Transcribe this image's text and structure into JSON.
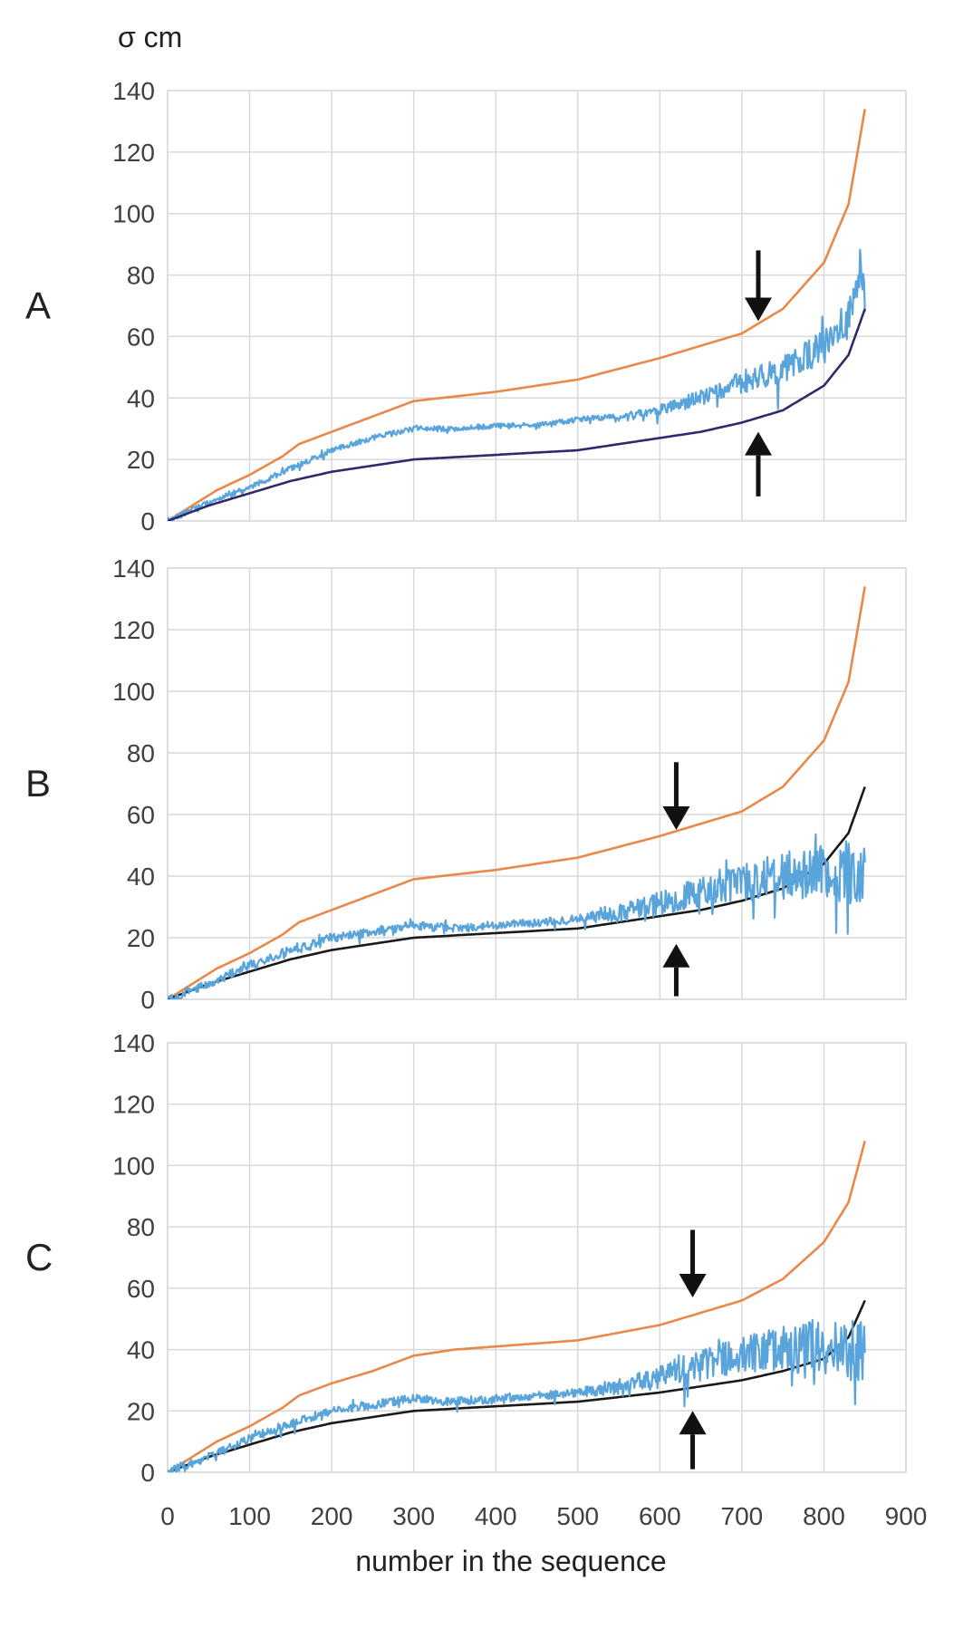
{
  "chart_data": {
    "type": "line",
    "ylabel": "σ cm",
    "xlabel": "number in the sequence",
    "x_ticks": [
      "0",
      "100",
      "200",
      "300",
      "400",
      "500",
      "600",
      "700",
      "800",
      "900"
    ],
    "y_ticks": [
      "0",
      "20",
      "40",
      "60",
      "80",
      "100",
      "120",
      "140"
    ],
    "xlim": [
      0,
      900
    ],
    "ylim": [
      0,
      140
    ],
    "grid": true,
    "colors": {
      "orange": "#e8884a",
      "blue": "#5aa4dc",
      "navy": "#2e2a6e",
      "black": "#1a1a1a",
      "grid": "#d9d9d9",
      "arrow": "#111111"
    },
    "panels": [
      {
        "label": "A",
        "series": [
          {
            "name": "orange",
            "color": "#e8884a",
            "noise": 0,
            "points": [
              [
                0,
                0
              ],
              [
                30,
                5
              ],
              [
                60,
                10
              ],
              [
                100,
                15
              ],
              [
                140,
                21
              ],
              [
                160,
                25
              ],
              [
                200,
                29
              ],
              [
                250,
                34
              ],
              [
                300,
                39
              ],
              [
                400,
                42
              ],
              [
                500,
                46
              ],
              [
                600,
                53
              ],
              [
                700,
                61
              ],
              [
                750,
                69
              ],
              [
                800,
                84
              ],
              [
                830,
                103
              ],
              [
                850,
                134
              ]
            ]
          },
          {
            "name": "blue",
            "color": "#5aa4dc",
            "noise": 2.5,
            "noise_start": 560,
            "points": [
              [
                0,
                0
              ],
              [
                50,
                6
              ],
              [
                100,
                11
              ],
              [
                150,
                17
              ],
              [
                200,
                23
              ],
              [
                250,
                27
              ],
              [
                300,
                30
              ],
              [
                350,
                30
              ],
              [
                400,
                31
              ],
              [
                450,
                31
              ],
              [
                500,
                33
              ],
              [
                550,
                34
              ],
              [
                600,
                36
              ],
              [
                650,
                40
              ],
              [
                700,
                45
              ],
              [
                750,
                49
              ],
              [
                800,
                57
              ],
              [
                830,
                66
              ],
              [
                850,
                82
              ]
            ]
          },
          {
            "name": "navy",
            "color": "#2e2a6e",
            "noise": 0,
            "points": [
              [
                0,
                0
              ],
              [
                50,
                5
              ],
              [
                100,
                9
              ],
              [
                150,
                13
              ],
              [
                200,
                16
              ],
              [
                250,
                18
              ],
              [
                300,
                20
              ],
              [
                400,
                21.5
              ],
              [
                500,
                23
              ],
              [
                600,
                27
              ],
              [
                650,
                29
              ],
              [
                700,
                32
              ],
              [
                750,
                36
              ],
              [
                800,
                44
              ],
              [
                830,
                54
              ],
              [
                850,
                69
              ]
            ]
          }
        ],
        "arrows": [
          {
            "x": 720,
            "y_tail": 88,
            "y_head": 65
          },
          {
            "x": 720,
            "y_tail": 8,
            "y_head": 29
          }
        ]
      },
      {
        "label": "B",
        "series": [
          {
            "name": "orange",
            "color": "#e8884a",
            "noise": 0,
            "points": [
              [
                0,
                0
              ],
              [
                30,
                5
              ],
              [
                60,
                10
              ],
              [
                100,
                15
              ],
              [
                140,
                21
              ],
              [
                160,
                25
              ],
              [
                200,
                29
              ],
              [
                250,
                34
              ],
              [
                300,
                39
              ],
              [
                400,
                42
              ],
              [
                500,
                46
              ],
              [
                600,
                53
              ],
              [
                700,
                61
              ],
              [
                750,
                69
              ],
              [
                800,
                84
              ],
              [
                830,
                103
              ],
              [
                850,
                134
              ]
            ]
          },
          {
            "name": "black",
            "color": "#1a1a1a",
            "noise": 0,
            "points": [
              [
                0,
                0
              ],
              [
                50,
                5
              ],
              [
                100,
                9
              ],
              [
                150,
                13
              ],
              [
                200,
                16
              ],
              [
                250,
                18
              ],
              [
                300,
                20
              ],
              [
                400,
                21.5
              ],
              [
                500,
                23
              ],
              [
                600,
                27
              ],
              [
                650,
                29
              ],
              [
                700,
                32
              ],
              [
                750,
                36
              ],
              [
                800,
                44
              ],
              [
                830,
                54
              ],
              [
                850,
                69
              ]
            ]
          },
          {
            "name": "blue",
            "color": "#5aa4dc",
            "noise": 4,
            "noise_start": 500,
            "points": [
              [
                0,
                0
              ],
              [
                50,
                5
              ],
              [
                100,
                11
              ],
              [
                150,
                16
              ],
              [
                200,
                20
              ],
              [
                250,
                22
              ],
              [
                300,
                24
              ],
              [
                350,
                23
              ],
              [
                400,
                24
              ],
              [
                450,
                25
              ],
              [
                500,
                26
              ],
              [
                550,
                28
              ],
              [
                600,
                31
              ],
              [
                650,
                35
              ],
              [
                700,
                38
              ],
              [
                750,
                40
              ],
              [
                800,
                42
              ],
              [
                830,
                40
              ],
              [
                850,
                40
              ]
            ]
          }
        ],
        "arrows": [
          {
            "x": 620,
            "y_tail": 77,
            "y_head": 55
          },
          {
            "x": 620,
            "y_tail": 1,
            "y_head": 18
          }
        ]
      },
      {
        "label": "C",
        "series": [
          {
            "name": "orange",
            "color": "#e8884a",
            "noise": 0,
            "points": [
              [
                0,
                0
              ],
              [
                30,
                5
              ],
              [
                60,
                10
              ],
              [
                100,
                15
              ],
              [
                140,
                21
              ],
              [
                160,
                25
              ],
              [
                200,
                29
              ],
              [
                250,
                33
              ],
              [
                300,
                38
              ],
              [
                350,
                40
              ],
              [
                400,
                41
              ],
              [
                500,
                43
              ],
              [
                600,
                48
              ],
              [
                700,
                56
              ],
              [
                750,
                63
              ],
              [
                800,
                75
              ],
              [
                830,
                88
              ],
              [
                850,
                108
              ]
            ]
          },
          {
            "name": "black",
            "color": "#1a1a1a",
            "noise": 0,
            "points": [
              [
                0,
                0
              ],
              [
                50,
                5
              ],
              [
                100,
                9
              ],
              [
                150,
                13
              ],
              [
                200,
                16
              ],
              [
                250,
                18
              ],
              [
                300,
                20
              ],
              [
                400,
                21.5
              ],
              [
                500,
                23
              ],
              [
                600,
                26
              ],
              [
                650,
                28
              ],
              [
                700,
                30
              ],
              [
                750,
                33
              ],
              [
                800,
                37
              ],
              [
                830,
                44
              ],
              [
                850,
                56
              ]
            ]
          },
          {
            "name": "blue",
            "color": "#5aa4dc",
            "noise": 4,
            "noise_start": 500,
            "points": [
              [
                0,
                0
              ],
              [
                50,
                5
              ],
              [
                100,
                11
              ],
              [
                150,
                16
              ],
              [
                200,
                20
              ],
              [
                250,
                22
              ],
              [
                300,
                24
              ],
              [
                350,
                23
              ],
              [
                400,
                24
              ],
              [
                450,
                25
              ],
              [
                500,
                26
              ],
              [
                550,
                28
              ],
              [
                600,
                31
              ],
              [
                650,
                35
              ],
              [
                700,
                38
              ],
              [
                750,
                40
              ],
              [
                800,
                42
              ],
              [
                830,
                40
              ],
              [
                850,
                40
              ]
            ]
          }
        ],
        "arrows": [
          {
            "x": 640,
            "y_tail": 79,
            "y_head": 57
          },
          {
            "x": 640,
            "y_tail": 1,
            "y_head": 20
          }
        ]
      }
    ]
  }
}
